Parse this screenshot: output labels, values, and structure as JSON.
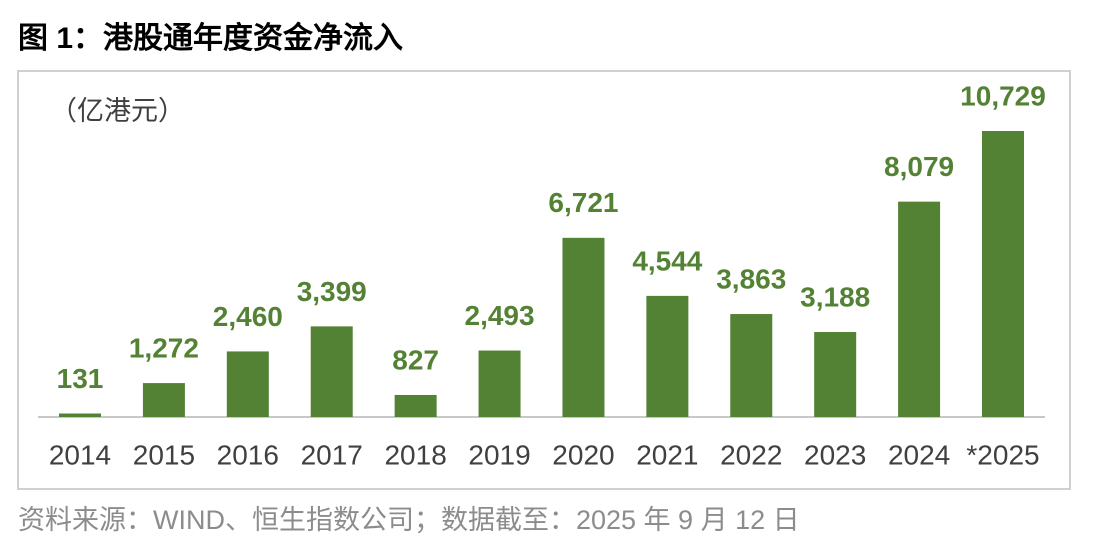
{
  "chart_data": {
    "type": "bar",
    "title": "图 1：港股通年度资金净流入",
    "unit_label": "（亿港元）",
    "categories": [
      "2014",
      "2015",
      "2016",
      "2017",
      "2018",
      "2019",
      "2020",
      "2021",
      "2022",
      "2023",
      "2024",
      "*2025"
    ],
    "values": [
      131,
      1272,
      2460,
      3399,
      827,
      2493,
      6721,
      4544,
      3863,
      3188,
      8079,
      10729
    ],
    "value_labels": [
      "131",
      "1,272",
      "2,460",
      "3,399",
      "827",
      "2,493",
      "6,721",
      "4,544",
      "3,863",
      "3,188",
      "8,079",
      "10,729"
    ],
    "color": "#548235",
    "source": "资料来源：WIND、恒生指数公司；数据截至：2025 年 9 月 12 日"
  }
}
